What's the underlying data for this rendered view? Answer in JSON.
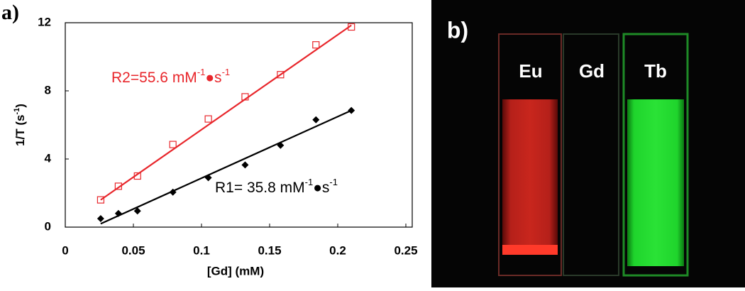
{
  "panel_a": {
    "label": "a)",
    "chart_data": {
      "type": "scatter",
      "xlabel": "[Gd] (mM)",
      "ylabel": {
        "text": "1/T (s",
        "sup": "-1",
        "tail": ")"
      },
      "xlim": [
        0,
        0.25
      ],
      "ylim": [
        0,
        12
      ],
      "xticks": [
        0,
        0.05,
        0.1,
        0.15,
        0.2,
        0.25
      ],
      "yticks": [
        0,
        4,
        8,
        12
      ],
      "series": [
        {
          "color": "#e8262b",
          "marker": "square",
          "x": [
            0.026,
            0.039,
            0.053,
            0.079,
            0.105,
            0.132,
            0.158,
            0.184,
            0.21
          ],
          "values": [
            1.6,
            2.4,
            3.0,
            4.85,
            6.35,
            7.65,
            8.95,
            10.7,
            11.75
          ]
        },
        {
          "color": "#000000",
          "marker": "diamond",
          "x": [
            0.026,
            0.039,
            0.053,
            0.079,
            0.105,
            0.132,
            0.158,
            0.184,
            0.21
          ],
          "values": [
            0.5,
            0.8,
            0.95,
            2.05,
            2.9,
            3.65,
            4.8,
            6.3,
            6.85
          ]
        }
      ],
      "fits": [
        {
          "color": "#e8262b",
          "x": [
            0.026,
            0.21
          ],
          "values": [
            1.6,
            11.85
          ]
        },
        {
          "color": "#000000",
          "x": [
            0.026,
            0.21
          ],
          "values": [
            0.2,
            6.85
          ]
        }
      ],
      "annotations": [
        {
          "color": "#e8262b",
          "text": "R2=55.6 mM",
          "sup1": "-1",
          "mid": "●s",
          "sup2": "-1"
        },
        {
          "color": "#000000",
          "text": "R1= 35.8 mM",
          "sup1": "-1",
          "mid": "●s",
          "sup2": "-1"
        }
      ]
    }
  },
  "panel_b": {
    "label": "b)",
    "cuvettes": [
      "Eu",
      "Gd",
      "Tb"
    ]
  }
}
